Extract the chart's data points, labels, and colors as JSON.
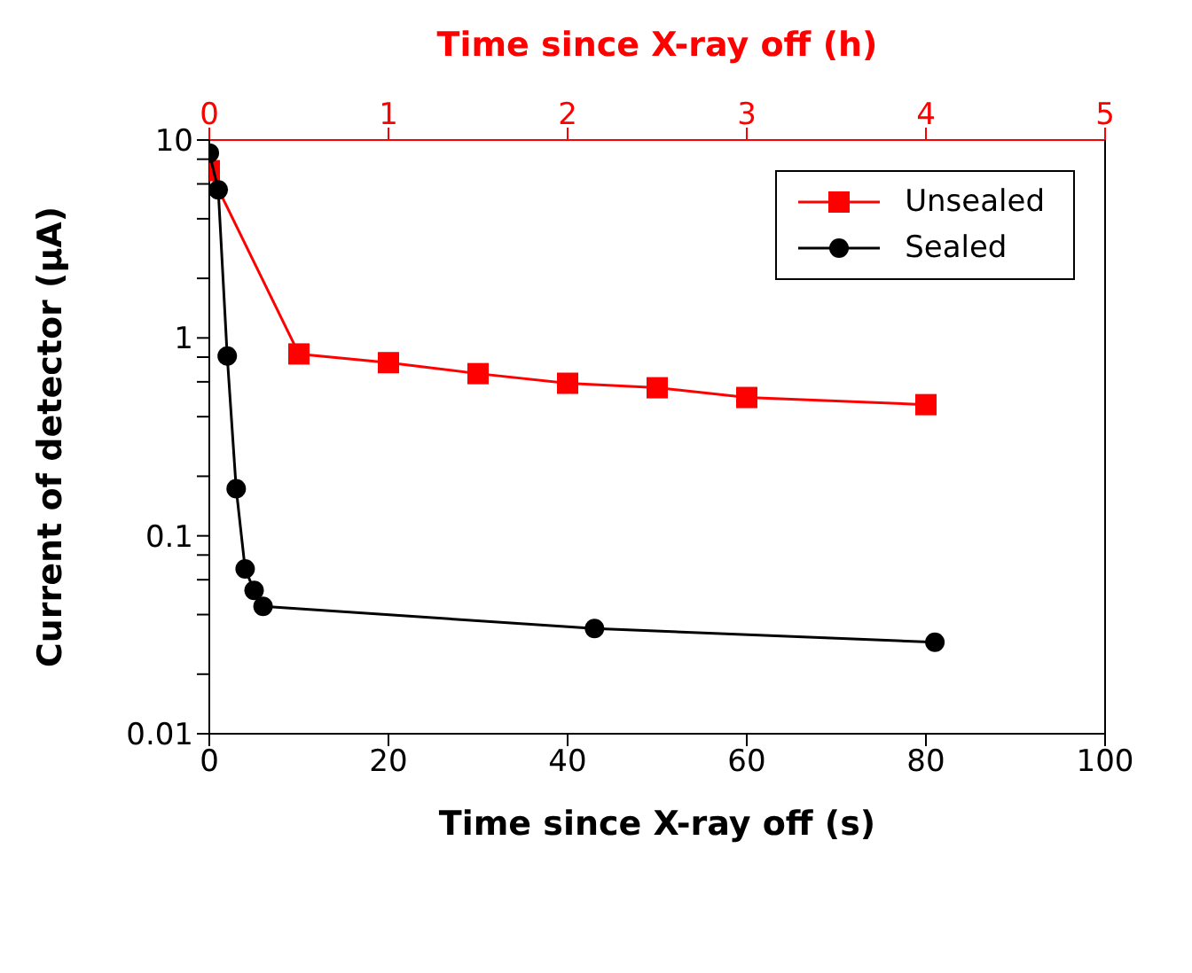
{
  "chart_data": {
    "type": "line",
    "xlabel": "Time since X-ray off (s)",
    "x2label": "Time since X-ray off (h)",
    "ylabel": "Current of detector (μA)",
    "log": "y",
    "xlim": [
      0,
      100
    ],
    "xticks": [
      0,
      20,
      40,
      60,
      80,
      100
    ],
    "x2lim": [
      0,
      5
    ],
    "x2ticks": [
      0,
      1,
      2,
      3,
      4,
      5
    ],
    "ylim": [
      0.01,
      10
    ],
    "yticks": [
      0.01,
      {
        "value": 0.02,
        "label": null
      },
      {
        "value": 0.04,
        "label": null
      },
      {
        "value": 0.06,
        "label": null
      },
      {
        "value": 0.08,
        "label": null
      },
      0.1,
      {
        "value": 0.2,
        "label": null
      },
      {
        "value": 0.4,
        "label": null
      },
      {
        "value": 0.6,
        "label": null
      },
      {
        "value": 0.8,
        "label": null
      },
      1,
      {
        "value": 2,
        "label": null
      },
      {
        "value": 4,
        "label": null
      },
      {
        "value": 6,
        "label": null
      },
      {
        "value": 8,
        "label": null
      },
      10
    ],
    "legend": "top right",
    "line_style": "solid",
    "series": [
      {
        "name": "Unsealed",
        "color": "#ff0000",
        "marker": "square",
        "axis": "x2",
        "x": [
          0,
          0.5,
          1,
          1.5,
          2,
          2.5,
          3,
          4
        ],
        "values": [
          7.0,
          0.83,
          0.75,
          0.66,
          0.59,
          0.56,
          0.5,
          0.46
        ]
      },
      {
        "name": "Sealed",
        "color": "#000000",
        "marker": "circle",
        "x": [
          0,
          1,
          2,
          3,
          4,
          5,
          6,
          43,
          81
        ],
        "values": [
          8.6,
          5.6,
          0.81,
          0.173,
          0.068,
          0.053,
          0.044,
          0.034,
          0.029
        ]
      }
    ]
  }
}
